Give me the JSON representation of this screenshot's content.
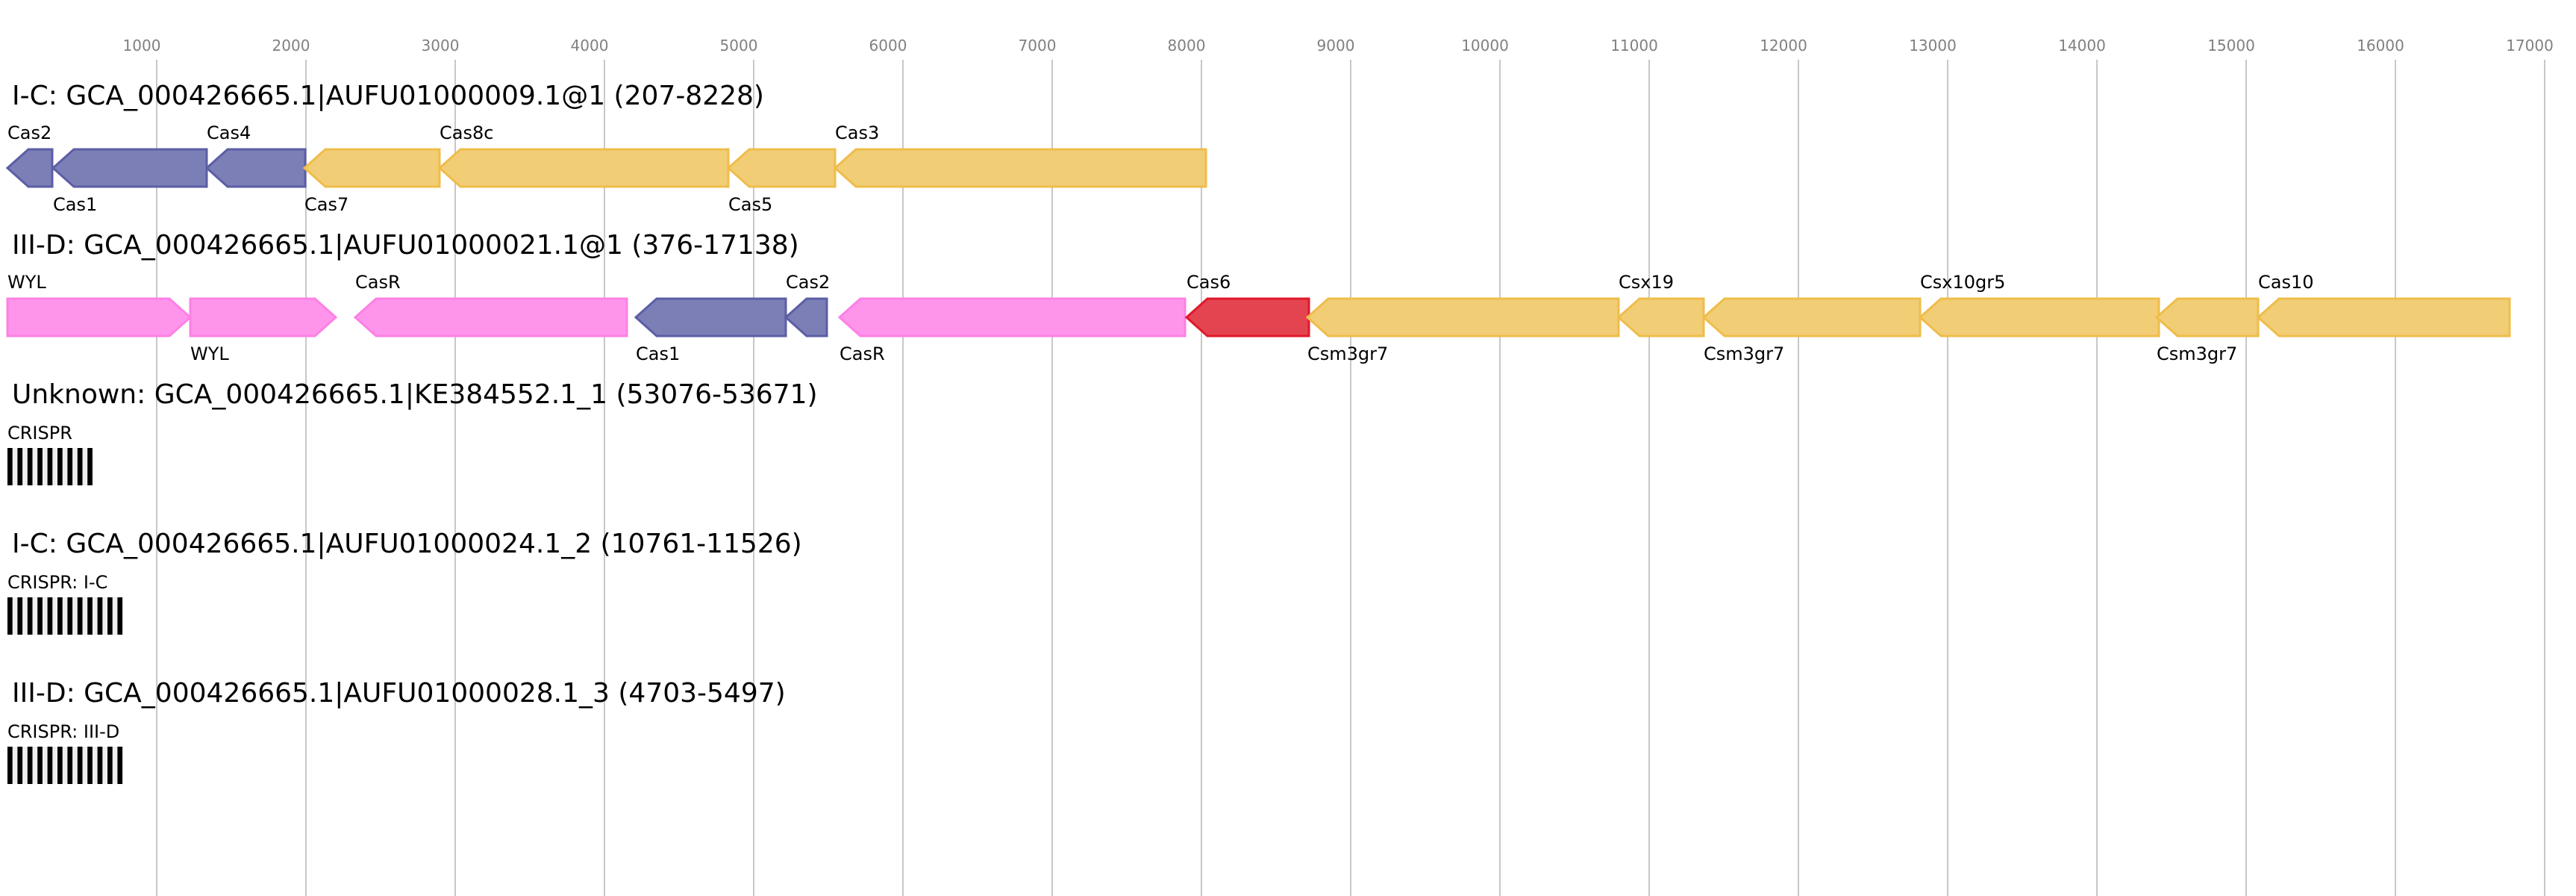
{
  "axis": {
    "ticks": [
      1000,
      2000,
      3000,
      4000,
      5000,
      6000,
      7000,
      8000,
      9000,
      10000,
      11000,
      12000,
      13000,
      14000,
      15000,
      16000,
      17000
    ]
  },
  "colors": {
    "blue": {
      "fill": "#7c7fb5",
      "stroke": "#5b5ea6"
    },
    "yellow": {
      "fill": "#f1cd76",
      "stroke": "#eebd4a"
    },
    "pink": {
      "fill": "#fe95eb",
      "stroke": "#fd80e5"
    },
    "red": {
      "fill": "#e34450",
      "stroke": "#e0182a"
    }
  },
  "loci": [
    {
      "title": "I-C: GCA_000426665.1|AUFU01000009.1@1 (207-8228)",
      "genes": [
        {
          "name": "Cas2",
          "start": 0,
          "end": 300,
          "strand": "-",
          "color": "blue",
          "label": "above"
        },
        {
          "name": "Cas1",
          "start": 305,
          "end": 1335,
          "strand": "-",
          "color": "blue",
          "label": "below"
        },
        {
          "name": "Cas4",
          "start": 1335,
          "end": 1995,
          "strand": "-",
          "color": "blue",
          "label": "above"
        },
        {
          "name": "Cas7",
          "start": 1990,
          "end": 2895,
          "strand": "-",
          "color": "yellow",
          "label": "below"
        },
        {
          "name": "Cas8c",
          "start": 2895,
          "end": 4830,
          "strand": "-",
          "color": "yellow",
          "label": "above"
        },
        {
          "name": "Cas5",
          "start": 4830,
          "end": 5545,
          "strand": "-",
          "color": "yellow",
          "label": "below"
        },
        {
          "name": "Cas3",
          "start": 5545,
          "end": 8030,
          "strand": "-",
          "color": "yellow",
          "label": "above"
        }
      ]
    },
    {
      "title": "III-D: GCA_000426665.1|AUFU01000021.1@1 (376-17138)",
      "genes": [
        {
          "name": "WYL",
          "start": 0,
          "end": 1225,
          "strand": "+",
          "color": "pink",
          "label": "above"
        },
        {
          "name": "WYL",
          "start": 1225,
          "end": 2200,
          "strand": "+",
          "color": "pink",
          "label": "below"
        },
        {
          "name": "CasR",
          "start": 2330,
          "end": 4150,
          "strand": "-",
          "color": "pink",
          "label": "above"
        },
        {
          "name": "Cas1",
          "start": 4210,
          "end": 5215,
          "strand": "-",
          "color": "blue",
          "label": "below"
        },
        {
          "name": "Cas2",
          "start": 5215,
          "end": 5490,
          "strand": "-",
          "color": "blue",
          "label": "above"
        },
        {
          "name": "CasR",
          "start": 5575,
          "end": 7890,
          "strand": "-",
          "color": "pink",
          "label": "below"
        },
        {
          "name": "Cas6",
          "start": 7900,
          "end": 8720,
          "strand": "-",
          "color": "red",
          "label": "above"
        },
        {
          "name": "Csm3gr7",
          "start": 8710,
          "end": 10795,
          "strand": "-",
          "color": "yellow",
          "label": "below"
        },
        {
          "name": "Csx19",
          "start": 10795,
          "end": 11365,
          "strand": "-",
          "color": "yellow",
          "label": "above"
        },
        {
          "name": "Csm3gr7",
          "start": 11365,
          "end": 12815,
          "strand": "-",
          "color": "yellow",
          "label": "below"
        },
        {
          "name": "Csx10gr5",
          "start": 12815,
          "end": 14415,
          "strand": "-",
          "color": "yellow",
          "label": "above"
        },
        {
          "name": "Csm3gr7",
          "start": 14400,
          "end": 15080,
          "strand": "-",
          "color": "yellow",
          "label": "below"
        },
        {
          "name": "Cas10",
          "start": 15080,
          "end": 16765,
          "strand": "-",
          "color": "yellow",
          "label": "above"
        }
      ]
    },
    {
      "title": "Unknown: GCA_000426665.1|KE384552.1_1 (53076-53671)",
      "crispr": {
        "label": "CRISPR",
        "repeats": 9
      }
    },
    {
      "title": "I-C: GCA_000426665.1|AUFU01000024.1_2 (10761-11526)",
      "crispr": {
        "label": "CRISPR: I-C",
        "repeats": 12
      }
    },
    {
      "title": "III-D: GCA_000426665.1|AUFU01000028.1_3 (4703-5497)",
      "crispr": {
        "label": "CRISPR: III-D",
        "repeats": 12
      }
    }
  ]
}
